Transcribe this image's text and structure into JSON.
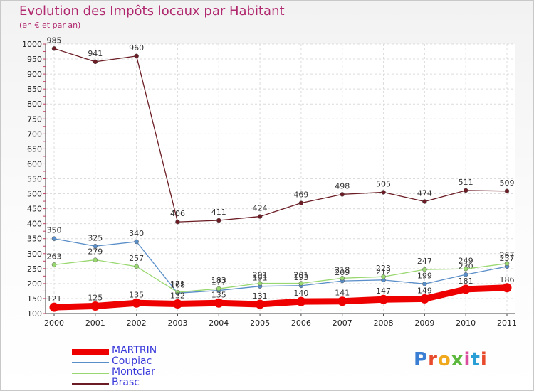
{
  "header": {
    "title": "Evolution des Impôts locaux par Habitant",
    "subtitle": "(en € et par an)"
  },
  "logo": {
    "text": [
      "P",
      "r",
      "o",
      "x",
      "i",
      "t",
      "i"
    ],
    "colors": [
      "#3b7fd4",
      "#e84a2c",
      "#f0a81c",
      "#5cb83c",
      "#d94c9e",
      "#2a9fd6",
      "#e84a2c"
    ]
  },
  "chart_data": {
    "type": "line",
    "title": "Evolution des Impôts locaux par Habitant",
    "subtitle": "(en € et par an)",
    "xlabel": "",
    "ylabel": "",
    "ylim": [
      100,
      1000
    ],
    "yticks": [
      100,
      150,
      200,
      250,
      300,
      350,
      400,
      450,
      500,
      550,
      600,
      650,
      700,
      750,
      800,
      850,
      900,
      950,
      1000
    ],
    "categories": [
      "2000",
      "2001",
      "2002",
      "2003",
      "2004",
      "2005",
      "2006",
      "2007",
      "2008",
      "2009",
      "2010",
      "2011"
    ],
    "grid": true,
    "series": [
      {
        "name": "Brasc",
        "color": "#6b1c24",
        "values": [
          985,
          941,
          960,
          406,
          411,
          424,
          469,
          498,
          505,
          474,
          511,
          509
        ]
      },
      {
        "name": "Coupiac",
        "color": "#5a8ec8",
        "values": [
          350,
          325,
          340,
          168,
          177,
          191,
          193,
          209,
          212,
          199,
          230,
          257
        ]
      },
      {
        "name": "Montclar",
        "color": "#99d870",
        "values": [
          263,
          279,
          257,
          171,
          183,
          201,
          201,
          218,
          223,
          247,
          249,
          267
        ]
      },
      {
        "name": "MARTRIN",
        "color": "#ee0000",
        "values": [
          121,
          125,
          135,
          132,
          135,
          131,
          140,
          141,
          147,
          149,
          181,
          186
        ]
      }
    ],
    "legend": [
      "MARTRIN",
      "Coupiac",
      "Montclar",
      "Brasc"
    ]
  }
}
